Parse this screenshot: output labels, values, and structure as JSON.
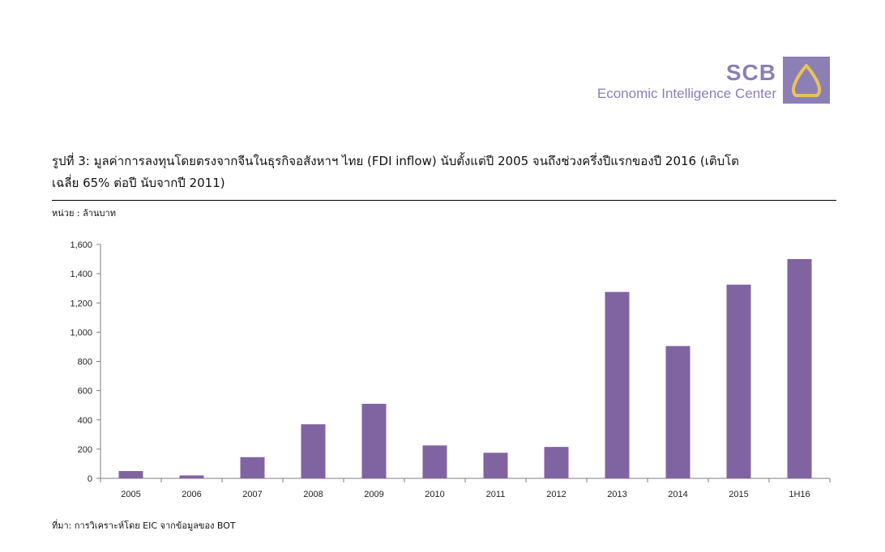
{
  "logo": {
    "brand": "SCB",
    "subtitle": "Economic Intelligence Center",
    "icon": "scb-emblem-icon"
  },
  "title_line1": "รูปที่ 3: มูลค่าการลงทุนโดยตรงจากจีนในธุรกิจอสังหาฯ ไทย (FDI inflow) นับตั้งแต่ปี 2005 จนถึงช่วงครึ่งปีแรกของปี 2016 (เติบโต",
  "title_line2": "เฉลี่ย 65% ต่อปี นับจากปี 2011)",
  "unit_label": "หน่วย : ล้านบาท",
  "source": "ที่มา: การวิเคราะห์โดย EIC จากข้อมูลของ BOT",
  "colors": {
    "bar": "#8064a2",
    "logo": "#8b7fb5"
  },
  "chart_data": {
    "type": "bar",
    "categories": [
      "2005",
      "2006",
      "2007",
      "2008",
      "2009",
      "2010",
      "2011",
      "2012",
      "2013",
      "2014",
      "2015",
      "1H16"
    ],
    "values": [
      50,
      20,
      145,
      370,
      510,
      225,
      175,
      215,
      1275,
      905,
      1325,
      1500
    ],
    "ylim": [
      0,
      1600
    ],
    "yticks": [
      "0",
      "200",
      "400",
      "600",
      "800",
      "1,000",
      "1,200",
      "1,400",
      "1,600"
    ],
    "ytick_values": [
      0,
      200,
      400,
      600,
      800,
      1000,
      1200,
      1400,
      1600
    ],
    "grid": false,
    "legend": "none"
  }
}
